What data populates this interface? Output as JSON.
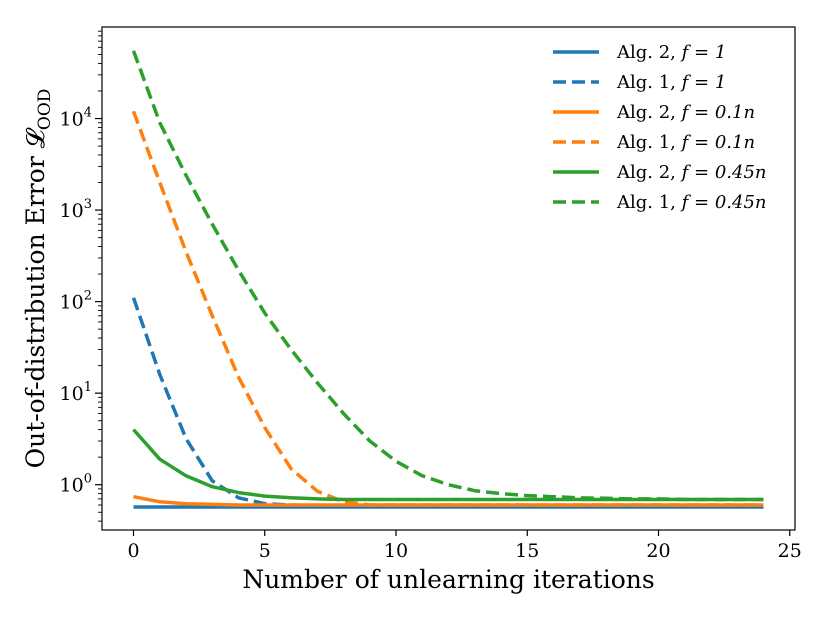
{
  "chart_data": {
    "type": "line",
    "title": "",
    "xlabel": "Number of unlearning iterations",
    "ylabel": "Out-of-distribution Error 𝓛",
    "ylabel_subscript": "OOD",
    "yscale": "log",
    "xlim": [
      -1.2,
      25.2
    ],
    "ylim": [
      0.32,
      100000
    ],
    "xticks": [
      0,
      5,
      10,
      15,
      20,
      25
    ],
    "xtick_labels": [
      "0",
      "5",
      "10",
      "15",
      "20",
      "25"
    ],
    "yticks": [
      1,
      10,
      100,
      1000,
      10000
    ],
    "ytick_labels": [
      {
        "base": "10",
        "exp": "0"
      },
      {
        "base": "10",
        "exp": "1"
      },
      {
        "base": "10",
        "exp": "2"
      },
      {
        "base": "10",
        "exp": "3"
      },
      {
        "base": "10",
        "exp": "4"
      }
    ],
    "grid": false,
    "legend_position": "top-right",
    "x": [
      0,
      1,
      2,
      3,
      4,
      5,
      6,
      7,
      8,
      9,
      10,
      11,
      12,
      13,
      14,
      15,
      16,
      17,
      18,
      19,
      20,
      21,
      22,
      23,
      24
    ],
    "series": [
      {
        "name": "Alg. 2, f = 1",
        "label_plain": "Alg. 2, ",
        "label_math": "f = 1",
        "color": "#1f77b4",
        "style": "solid",
        "values": [
          0.57,
          0.57,
          0.57,
          0.57,
          0.57,
          0.57,
          0.57,
          0.57,
          0.57,
          0.57,
          0.57,
          0.57,
          0.57,
          0.57,
          0.57,
          0.57,
          0.57,
          0.57,
          0.57,
          0.57,
          0.57,
          0.57,
          0.57,
          0.57,
          0.57
        ]
      },
      {
        "name": "Alg. 1, f = 1",
        "label_plain": "Alg. 1, ",
        "label_math": "f = 1",
        "color": "#1f77b4",
        "style": "dashed",
        "values": [
          110,
          16,
          3.2,
          1.1,
          0.72,
          0.62,
          0.6,
          0.59,
          0.58,
          0.58,
          0.58,
          0.58,
          0.58,
          0.58,
          0.58,
          0.58,
          0.58,
          0.58,
          0.58,
          0.58,
          0.58,
          0.58,
          0.58,
          0.58,
          0.58
        ]
      },
      {
        "name": "Alg. 2, f = 0.1n",
        "label_plain": "Alg. 2, ",
        "label_math": "f = 0.1n",
        "color": "#ff7f0e",
        "style": "solid",
        "values": [
          0.74,
          0.65,
          0.62,
          0.61,
          0.6,
          0.6,
          0.6,
          0.6,
          0.6,
          0.6,
          0.6,
          0.6,
          0.6,
          0.6,
          0.6,
          0.6,
          0.6,
          0.6,
          0.6,
          0.6,
          0.6,
          0.6,
          0.6,
          0.6,
          0.6
        ]
      },
      {
        "name": "Alg. 1, f = 0.1n",
        "label_plain": "Alg. 1, ",
        "label_math": "f = 0.1n",
        "color": "#ff7f0e",
        "style": "dashed",
        "values": [
          12000,
          2000,
          350,
          70,
          15,
          4.2,
          1.5,
          0.85,
          0.65,
          0.6,
          0.6,
          0.6,
          0.6,
          0.6,
          0.6,
          0.6,
          0.6,
          0.6,
          0.6,
          0.6,
          0.6,
          0.6,
          0.6,
          0.6,
          0.6
        ]
      },
      {
        "name": "Alg. 2, f = 0.45n",
        "label_plain": "Alg. 2, ",
        "label_math": "f = 0.45n",
        "color": "#2ca02c",
        "style": "solid",
        "values": [
          4.0,
          1.9,
          1.25,
          0.95,
          0.82,
          0.75,
          0.72,
          0.7,
          0.69,
          0.69,
          0.69,
          0.69,
          0.69,
          0.69,
          0.69,
          0.69,
          0.69,
          0.69,
          0.69,
          0.69,
          0.69,
          0.69,
          0.69,
          0.69,
          0.69
        ]
      },
      {
        "name": "Alg. 1, f = 0.45n",
        "label_plain": "Alg. 1, ",
        "label_math": "f = 0.45n",
        "color": "#2ca02c",
        "style": "dashed",
        "values": [
          55000,
          9000,
          2400,
          700,
          220,
          75,
          30,
          13,
          6,
          3,
          1.8,
          1.25,
          1.0,
          0.86,
          0.8,
          0.76,
          0.74,
          0.72,
          0.71,
          0.7,
          0.7,
          0.69,
          0.69,
          0.69,
          0.69
        ]
      }
    ]
  }
}
